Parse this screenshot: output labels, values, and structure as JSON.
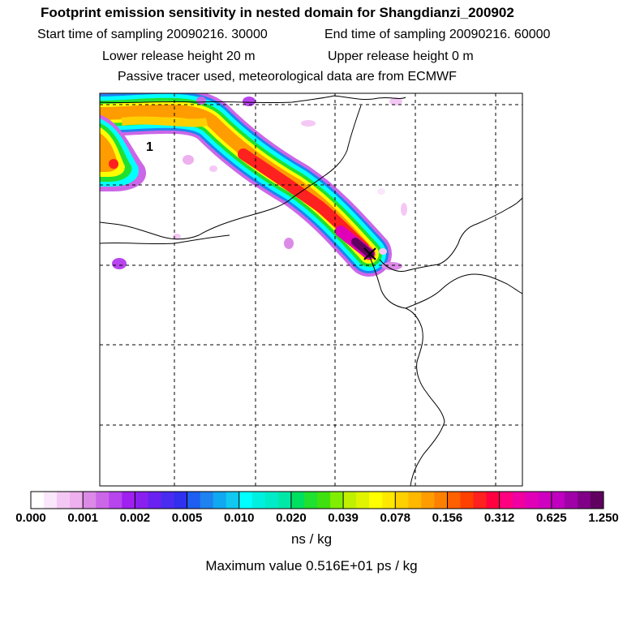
{
  "header": {
    "title": "Footprint emission sensitivity in nested domain for Shangdianzi_200902",
    "start_label": "Start time of sampling 20090216. 30000",
    "end_label": "End time of sampling 20090216. 60000",
    "lower_label": "Lower release height   20 m",
    "upper_label": "Upper release height    0 m",
    "tracer_label": "Passive tracer used, meteorological data are from ECMWF"
  },
  "map": {
    "release_label": "1"
  },
  "colorbar": {
    "tick_labels": [
      "0.000",
      "0.001",
      "0.002",
      "0.005",
      "0.010",
      "0.020",
      "0.039",
      "0.078",
      "0.156",
      "0.312",
      "0.625",
      "1.250"
    ],
    "colors": [
      "#ffffff",
      "#fbe7fb",
      "#f4c8f4",
      "#eeb0ee",
      "#dc8ae8",
      "#cc66e8",
      "#b844ee",
      "#a020f0",
      "#8a20f0",
      "#6a22f0",
      "#4a2cf0",
      "#3030ee",
      "#1e5ef0",
      "#1e82f0",
      "#10a8f0",
      "#10c8f0",
      "#00ffff",
      "#00f0e0",
      "#00ecc8",
      "#00e8a8",
      "#00e060",
      "#20e030",
      "#40e010",
      "#80ee00",
      "#c0f000",
      "#e0f400",
      "#ffff00",
      "#ffe800",
      "#ffd000",
      "#ffb800",
      "#ff9c00",
      "#ff8000",
      "#ff6000",
      "#ff4000",
      "#ff2020",
      "#ff0040",
      "#ff0080",
      "#f000a0",
      "#e000b8",
      "#d000c0",
      "#c000c0",
      "#a000a8",
      "#800088",
      "#600060"
    ],
    "unit_label": "ns / kg"
  },
  "footer": {
    "max_value_label": "Maximum value  0.516E+01 ps / kg"
  }
}
